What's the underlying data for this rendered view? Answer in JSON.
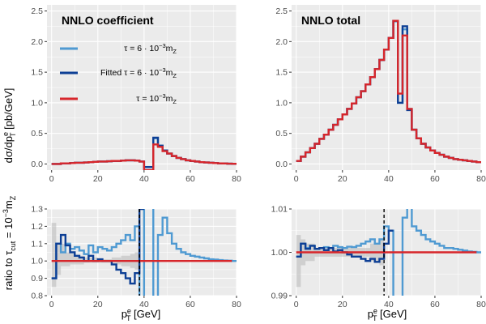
{
  "colors": {
    "panel_bg": "#ebebeb",
    "grid": "#ffffff",
    "light_blue": "#4f9ad2",
    "dark_blue": "#0d3f95",
    "red": "#d7262b",
    "axis_text": "#4d4d4d"
  },
  "labels": {
    "ylabel_top": "dσ/dp",
    "ylabel_top_sup": "e",
    "ylabel_top_sub": "T",
    "ylabel_top_unit": " [pb/GeV]",
    "ylabel_bottom": "ratio to τ",
    "ylabel_bottom_sub": "cut",
    "ylabel_bottom_eq": " = 10",
    "ylabel_bottom_exp": "−3",
    "ylabel_bottom_m": "m",
    "ylabel_bottom_msub": "Z",
    "xlabel_main": "p",
    "xlabel_sup": "e",
    "xlabel_sub": "T",
    "xlabel_unit": " [GeV]"
  },
  "legend": [
    {
      "pre": "τ = 6 · 10",
      "exp": "−3",
      "m": "m",
      "msub": "Z",
      "color_key": "light_blue"
    },
    {
      "pre": "Fitted τ = 6 · 10",
      "exp": "−3",
      "m": "m",
      "msub": "Z",
      "color_key": "dark_blue"
    },
    {
      "pre": "τ = 10",
      "exp": "−3",
      "m": "m",
      "msub": "Z",
      "color_key": "red"
    }
  ],
  "chart_data": [
    {
      "id": "top_left",
      "type": "line",
      "title": "NNLO coefficient",
      "xlim": [
        -2,
        80
      ],
      "ylim": [
        -0.1,
        2.6
      ],
      "xticks": [
        0,
        20,
        40,
        60,
        80
      ],
      "yticks": [
        0.0,
        0.5,
        1.0,
        1.5,
        2.0,
        2.5
      ],
      "ytick_labels": [
        "0.0",
        "0.5",
        "1.0",
        "1.5",
        "2.0",
        "2.5"
      ],
      "show_xtick_labels": true,
      "series": [
        {
          "name": "τ = 6·10⁻³ mZ",
          "color_key": "light_blue",
          "x": [
            0,
            2,
            4,
            6,
            8,
            10,
            12,
            14,
            16,
            18,
            20,
            22,
            24,
            26,
            28,
            30,
            32,
            34,
            36,
            38,
            40,
            42,
            44,
            46,
            48,
            50,
            52,
            54,
            56,
            58,
            60,
            62,
            64,
            66,
            68,
            70,
            72,
            74,
            76,
            78
          ],
          "y": [
            0.0,
            0.0,
            0.01,
            0.01,
            0.015,
            0.02,
            0.02,
            0.025,
            0.03,
            0.035,
            0.04,
            0.04,
            0.045,
            0.05,
            0.05,
            0.055,
            0.06,
            0.06,
            0.055,
            0.04,
            -0.1,
            -0.1,
            0.42,
            0.3,
            0.22,
            0.17,
            0.13,
            0.1,
            0.08,
            0.06,
            0.05,
            0.04,
            0.03,
            0.025,
            0.02,
            0.015,
            0.01,
            0.008,
            0.005,
            0.004
          ]
        },
        {
          "name": "Fitted τ = 6·10⁻³ mZ",
          "color_key": "dark_blue",
          "x": [
            0,
            2,
            4,
            6,
            8,
            10,
            12,
            14,
            16,
            18,
            20,
            22,
            24,
            26,
            28,
            30,
            32,
            34,
            36,
            38,
            40,
            42,
            44,
            46,
            48,
            50,
            52,
            54,
            56,
            58,
            60,
            62,
            64,
            66,
            68,
            70,
            72,
            74,
            76,
            78
          ],
          "y": [
            0.0,
            0.0,
            0.01,
            0.01,
            0.015,
            0.02,
            0.02,
            0.025,
            0.03,
            0.035,
            0.04,
            0.04,
            0.045,
            0.05,
            0.05,
            0.055,
            0.06,
            0.06,
            0.055,
            0.04,
            -0.05,
            -0.05,
            0.43,
            0.3,
            0.22,
            0.17,
            0.13,
            0.1,
            0.08,
            0.06,
            0.05,
            0.04,
            0.03,
            0.025,
            0.02,
            0.015,
            0.01,
            0.008,
            0.005,
            0.004
          ]
        },
        {
          "name": "τ = 10⁻³ mZ",
          "color_key": "red",
          "x": [
            0,
            2,
            4,
            6,
            8,
            10,
            12,
            14,
            16,
            18,
            20,
            22,
            24,
            26,
            28,
            30,
            32,
            34,
            36,
            38,
            40,
            42,
            44,
            46,
            48,
            50,
            52,
            54,
            56,
            58,
            60,
            62,
            64,
            66,
            68,
            70,
            72,
            74,
            76,
            78
          ],
          "y": [
            0.0,
            0.0,
            0.01,
            0.01,
            0.015,
            0.02,
            0.02,
            0.025,
            0.03,
            0.035,
            0.04,
            0.04,
            0.045,
            0.05,
            0.05,
            0.055,
            0.06,
            0.06,
            0.055,
            0.04,
            -0.1,
            -0.1,
            0.32,
            0.28,
            0.21,
            0.17,
            0.13,
            0.1,
            0.08,
            0.06,
            0.05,
            0.04,
            0.03,
            0.025,
            0.02,
            0.015,
            0.01,
            0.008,
            0.005,
            0.004
          ]
        }
      ]
    },
    {
      "id": "top_right",
      "type": "line",
      "title": "NNLO total",
      "xlim": [
        -2,
        80
      ],
      "ylim": [
        -0.1,
        2.6
      ],
      "xticks": [
        0,
        20,
        40,
        60,
        80
      ],
      "yticks": [
        0.0,
        0.5,
        1.0,
        1.5,
        2.0,
        2.5
      ],
      "ytick_labels": [
        "0.0",
        "0.5",
        "1.0",
        "1.5",
        "2.0",
        "2.5"
      ],
      "show_xtick_labels": true,
      "series": [
        {
          "name": "τ = 6·10⁻³ mZ",
          "color_key": "light_blue",
          "x": [
            0,
            2,
            4,
            6,
            8,
            10,
            12,
            14,
            16,
            18,
            20,
            22,
            24,
            26,
            28,
            30,
            32,
            34,
            36,
            38,
            40,
            42,
            44,
            46,
            48,
            50,
            52,
            54,
            56,
            58,
            60,
            62,
            64,
            66,
            68,
            70,
            72,
            74,
            76,
            78
          ],
          "y": [
            0.05,
            0.12,
            0.19,
            0.26,
            0.33,
            0.41,
            0.48,
            0.56,
            0.64,
            0.73,
            0.81,
            0.9,
            0.99,
            1.09,
            1.19,
            1.3,
            1.42,
            1.55,
            1.7,
            1.87,
            2.06,
            2.33,
            1.0,
            2.2,
            0.9,
            0.56,
            0.42,
            0.33,
            0.27,
            0.22,
            0.18,
            0.15,
            0.12,
            0.1,
            0.08,
            0.07,
            0.06,
            0.05,
            0.04,
            0.03
          ]
        },
        {
          "name": "Fitted τ = 6·10⁻³ mZ",
          "color_key": "dark_blue",
          "x": [
            0,
            2,
            4,
            6,
            8,
            10,
            12,
            14,
            16,
            18,
            20,
            22,
            24,
            26,
            28,
            30,
            32,
            34,
            36,
            38,
            40,
            42,
            44,
            46,
            48,
            50,
            52,
            54,
            56,
            58,
            60,
            62,
            64,
            66,
            68,
            70,
            72,
            74,
            76,
            78
          ],
          "y": [
            0.05,
            0.12,
            0.19,
            0.26,
            0.33,
            0.41,
            0.48,
            0.56,
            0.64,
            0.73,
            0.81,
            0.9,
            0.99,
            1.09,
            1.19,
            1.3,
            1.42,
            1.55,
            1.7,
            1.87,
            2.06,
            2.34,
            1.0,
            2.25,
            0.88,
            0.56,
            0.42,
            0.33,
            0.27,
            0.22,
            0.18,
            0.15,
            0.12,
            0.1,
            0.08,
            0.07,
            0.06,
            0.05,
            0.04,
            0.03
          ]
        },
        {
          "name": "τ = 10⁻³ mZ",
          "color_key": "red",
          "x": [
            0,
            2,
            4,
            6,
            8,
            10,
            12,
            14,
            16,
            18,
            20,
            22,
            24,
            26,
            28,
            30,
            32,
            34,
            36,
            38,
            40,
            42,
            44,
            46,
            48,
            50,
            52,
            54,
            56,
            58,
            60,
            62,
            64,
            66,
            68,
            70,
            72,
            74,
            76,
            78
          ],
          "y": [
            0.05,
            0.12,
            0.19,
            0.26,
            0.33,
            0.41,
            0.48,
            0.56,
            0.64,
            0.73,
            0.81,
            0.9,
            0.99,
            1.09,
            1.19,
            1.3,
            1.42,
            1.55,
            1.7,
            1.87,
            2.06,
            2.34,
            1.15,
            2.1,
            0.9,
            0.56,
            0.42,
            0.33,
            0.27,
            0.22,
            0.18,
            0.15,
            0.12,
            0.1,
            0.08,
            0.07,
            0.06,
            0.05,
            0.04,
            0.03
          ]
        }
      ]
    },
    {
      "id": "bottom_left",
      "type": "line",
      "xlim": [
        -2,
        80
      ],
      "ylim": [
        0.8,
        1.3
      ],
      "xticks": [
        0,
        20,
        40,
        60,
        80
      ],
      "yticks": [
        0.8,
        0.9,
        1.0,
        1.1,
        1.2,
        1.3
      ],
      "ytick_labels": [
        "0.8",
        "0.9",
        "1.0",
        "1.1",
        "1.2",
        "1.3"
      ],
      "show_xtick_labels": true,
      "vline": 38,
      "band": {
        "x": [
          0,
          2,
          4,
          6,
          8,
          10,
          12,
          14,
          16,
          18,
          20,
          22,
          24,
          26,
          28,
          30,
          32,
          34,
          36
        ],
        "lo": [
          0.85,
          0.92,
          0.97,
          0.97,
          0.98,
          0.98,
          0.98,
          0.99,
          0.99,
          0.99,
          0.99,
          0.99,
          0.99,
          0.99,
          0.98,
          0.97,
          0.97,
          0.96,
          0.95
        ],
        "hi": [
          1.22,
          1.1,
          1.1,
          1.05,
          1.04,
          1.03,
          1.03,
          1.02,
          1.02,
          1.02,
          1.01,
          1.01,
          1.01,
          1.02,
          1.02,
          1.03,
          1.03,
          1.04,
          1.05
        ]
      },
      "series": [
        {
          "name": "τ = 6·10⁻³ mZ",
          "color_key": "light_blue",
          "x": [
            0,
            2,
            4,
            6,
            8,
            10,
            12,
            14,
            16,
            18,
            20,
            22,
            24,
            26,
            28,
            30,
            32,
            34,
            36,
            38,
            40,
            42,
            44,
            46,
            48,
            50,
            52,
            54,
            56,
            58,
            60,
            62,
            64,
            66,
            68,
            70,
            72,
            74,
            76,
            78
          ],
          "y": [
            0.9,
            1.1,
            1.05,
            1.1,
            1.07,
            1.08,
            1.06,
            1.04,
            1.09,
            1.05,
            1.08,
            1.07,
            1.06,
            1.08,
            1.1,
            1.12,
            1.15,
            1.12,
            1.2,
            0.7,
            1.4,
            1.4,
            0.7,
            1.15,
            1.25,
            1.16,
            1.1,
            1.07,
            1.05,
            1.04,
            1.03,
            1.025,
            1.02,
            1.015,
            1.01,
            1.008,
            1.005,
            1.003,
            1.002,
            1.0
          ]
        },
        {
          "name": "Fitted τ = 6·10⁻³ mZ",
          "color_key": "dark_blue",
          "x": [
            0,
            2,
            4,
            6,
            8,
            10,
            12,
            14,
            16,
            18,
            20,
            22,
            24,
            26,
            28,
            30,
            32,
            34,
            36,
            38
          ],
          "y": [
            0.9,
            1.1,
            1.15,
            1.09,
            1.05,
            1.03,
            1.02,
            1.0,
            1.03,
            1.0,
            1.01,
            1.0,
            1.0,
            0.98,
            0.95,
            0.93,
            0.9,
            0.87,
            0.93,
            1.3
          ]
        },
        {
          "name": "τ = 10⁻³ mZ",
          "color_key": "red",
          "x": [
            0,
            78
          ],
          "y": [
            1.0,
            1.0
          ]
        }
      ]
    },
    {
      "id": "bottom_right",
      "type": "line",
      "xlim": [
        -2,
        80
      ],
      "ylim": [
        0.99,
        1.01
      ],
      "xticks": [
        0,
        20,
        40,
        60,
        80
      ],
      "yticks": [
        0.99,
        1.0,
        1.01
      ],
      "ytick_labels": [
        "0.99",
        "1.00",
        "1.01"
      ],
      "show_xtick_labels": true,
      "vline": 38,
      "band": {
        "x": [
          0,
          2,
          4,
          6,
          8,
          10,
          12,
          14,
          16,
          18,
          20,
          22,
          24,
          26,
          28,
          30,
          32,
          34,
          36
        ],
        "lo": [
          0.992,
          0.997,
          0.998,
          0.998,
          0.999,
          0.999,
          0.999,
          0.999,
          0.999,
          0.999,
          0.999,
          0.999,
          0.999,
          0.999,
          0.999,
          0.999,
          0.998,
          0.998,
          0.997
        ],
        "hi": [
          1.004,
          1.003,
          1.002,
          1.002,
          1.001,
          1.001,
          1.001,
          1.001,
          1.001,
          1.001,
          1.001,
          1.001,
          1.001,
          1.001,
          1.001,
          1.001,
          1.002,
          1.002,
          1.003
        ]
      },
      "series": [
        {
          "name": "τ = 6·10⁻³ mZ",
          "color_key": "light_blue",
          "x": [
            0,
            2,
            4,
            6,
            8,
            10,
            12,
            14,
            16,
            18,
            20,
            22,
            24,
            26,
            28,
            30,
            32,
            34,
            36,
            38,
            40,
            42,
            44,
            46,
            48,
            50,
            52,
            54,
            56,
            58,
            60,
            62,
            64,
            66,
            68,
            70,
            72,
            74,
            76,
            78
          ],
          "y": [
            0.999,
            1.002,
            1.001,
            1.0015,
            1.0008,
            1.001,
            1.0012,
            1.001,
            1.0015,
            1.0012,
            1.001,
            1.0013,
            1.0012,
            1.0015,
            1.002,
            1.0025,
            1.003,
            1.002,
            1.003,
            1.006,
            1.005,
            0.98,
            0.98,
            1.008,
            1.012,
            1.006,
            1.005,
            1.004,
            1.003,
            1.0025,
            1.002,
            1.0015,
            1.001,
            1.001,
            1.0008,
            1.0006,
            1.0004,
            1.0002,
            1.0001,
            1.0
          ]
        },
        {
          "name": "Fitted τ = 6·10⁻³ mZ",
          "color_key": "dark_blue",
          "x": [
            0,
            2,
            4,
            6,
            8,
            10,
            12,
            14,
            16,
            18,
            20,
            22,
            24,
            26,
            28,
            30,
            32,
            34,
            36,
            38,
            40
          ],
          "y": [
            0.999,
            1.002,
            1.0008,
            1.0015,
            1.0008,
            1.001,
            1.0005,
            1.001,
            1.0002,
            1.0005,
            1.0,
            0.9995,
            0.999,
            0.999,
            0.9985,
            0.998,
            0.9985,
            0.9978,
            0.9985,
            1.002,
            1.005
          ]
        },
        {
          "name": "τ = 10⁻³ mZ",
          "color_key": "red",
          "x": [
            0,
            78
          ],
          "y": [
            1.0,
            1.0
          ]
        }
      ]
    }
  ]
}
